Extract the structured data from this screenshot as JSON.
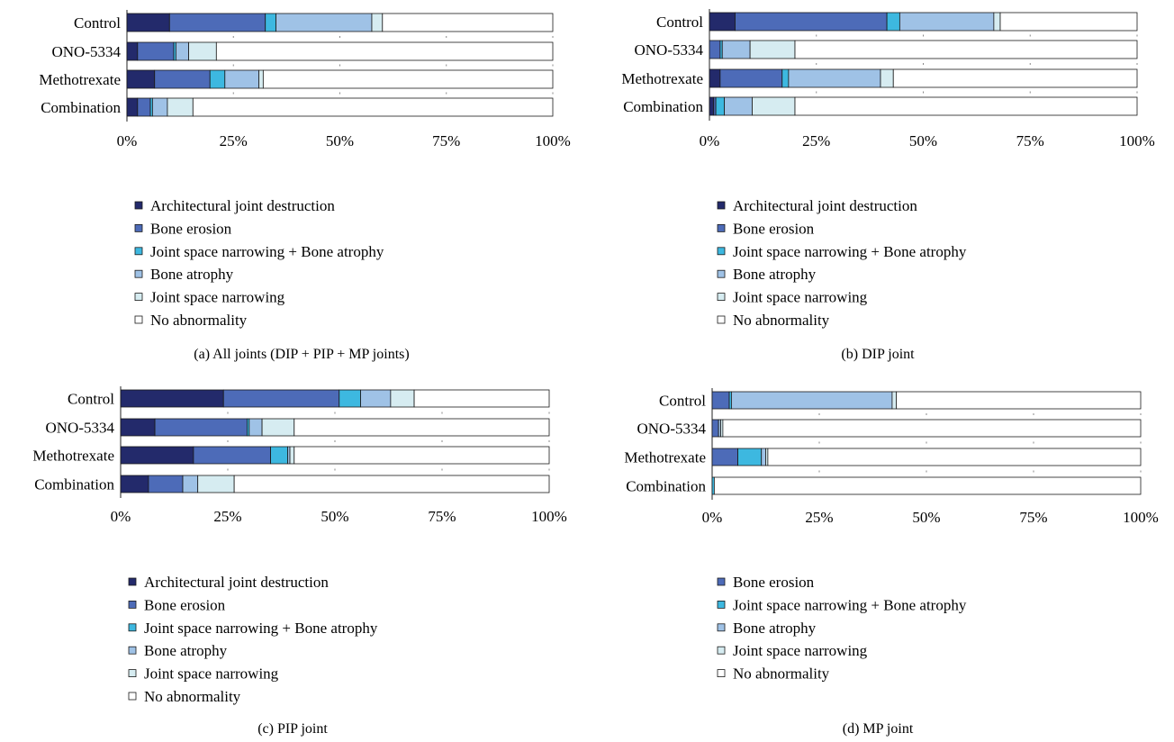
{
  "legend": [
    {
      "key": "arch",
      "label": "Architectural joint destruction",
      "color": "#232a6b"
    },
    {
      "key": "erosion",
      "label": "Bone erosion",
      "color": "#4d6bb8"
    },
    {
      "key": "jsn_atrophy",
      "label": "Joint space narrowing + Bone atrophy",
      "color": "#3db8e0"
    },
    {
      "key": "atrophy",
      "label": "Bone atrophy",
      "color": "#9fc2e6"
    },
    {
      "key": "jsn",
      "label": "Joint space narrowing",
      "color": "#d6ecf1"
    },
    {
      "key": "none",
      "label": "No abnormality",
      "color": "#ffffff"
    }
  ],
  "chart_data": [
    {
      "type": "bar",
      "orientation": "horizontal",
      "stacked": true,
      "caption": "(a)  All joints (DIP + PIP + MP joints)",
      "categories": [
        "Control",
        "ONO-5334",
        "Methotrexate",
        "Combination"
      ],
      "xlim": [
        0,
        100
      ],
      "x_ticks": [
        "0%",
        "25%",
        "50%",
        "75%",
        "100%"
      ],
      "series": [
        {
          "key": "arch",
          "values": [
            10,
            2.5,
            6.5,
            2.5
          ]
        },
        {
          "key": "erosion",
          "values": [
            22.5,
            8.5,
            13,
            3
          ]
        },
        {
          "key": "jsn_atrophy",
          "values": [
            2.5,
            0.5,
            3.5,
            0.5
          ]
        },
        {
          "key": "atrophy",
          "values": [
            22.5,
            3,
            8,
            3.5
          ]
        },
        {
          "key": "jsn",
          "values": [
            2.5,
            6.5,
            1,
            6
          ]
        },
        {
          "key": "none",
          "values": [
            40,
            79,
            68,
            84.5
          ]
        }
      ],
      "legend_keys": [
        "arch",
        "erosion",
        "jsn_atrophy",
        "atrophy",
        "jsn",
        "none"
      ]
    },
    {
      "type": "bar",
      "orientation": "horizontal",
      "stacked": true,
      "caption": "(b)  DIP joint",
      "categories": [
        "Control",
        "ONO-5334",
        "Methotrexate",
        "Combination"
      ],
      "xlim": [
        0,
        100
      ],
      "x_ticks": [
        "0%",
        "25%",
        "50%",
        "75%",
        "100%"
      ],
      "series": [
        {
          "key": "arch",
          "values": [
            6,
            0,
            2.5,
            1
          ]
        },
        {
          "key": "erosion",
          "values": [
            35.5,
            2.5,
            14.5,
            0.5
          ]
        },
        {
          "key": "jsn_atrophy",
          "values": [
            3,
            0.5,
            1.5,
            2
          ]
        },
        {
          "key": "atrophy",
          "values": [
            22,
            6.5,
            21.5,
            6.5
          ]
        },
        {
          "key": "jsn",
          "values": [
            1.5,
            10.5,
            3,
            10
          ]
        },
        {
          "key": "none",
          "values": [
            32,
            80,
            57,
            80
          ]
        }
      ],
      "legend_keys": [
        "arch",
        "erosion",
        "jsn_atrophy",
        "atrophy",
        "jsn",
        "none"
      ]
    },
    {
      "type": "bar",
      "orientation": "horizontal",
      "stacked": true,
      "caption": "(c)  PIP joint",
      "categories": [
        "Control",
        "ONO-5334",
        "Methotrexate",
        "Combination"
      ],
      "xlim": [
        0,
        100
      ],
      "x_ticks": [
        "0%",
        "25%",
        "50%",
        "75%",
        "100%"
      ],
      "series": [
        {
          "key": "arch",
          "values": [
            24,
            8,
            17,
            6.5
          ]
        },
        {
          "key": "erosion",
          "values": [
            27,
            21.5,
            18,
            8
          ]
        },
        {
          "key": "jsn_atrophy",
          "values": [
            5,
            0.5,
            4,
            0
          ]
        },
        {
          "key": "atrophy",
          "values": [
            7,
            3,
            0.5,
            3.5
          ]
        },
        {
          "key": "jsn",
          "values": [
            5.5,
            7.5,
            1,
            8.5
          ]
        },
        {
          "key": "none",
          "values": [
            31.5,
            59.5,
            59.5,
            73.5
          ]
        }
      ],
      "legend_keys": [
        "arch",
        "erosion",
        "jsn_atrophy",
        "atrophy",
        "jsn",
        "none"
      ]
    },
    {
      "type": "bar",
      "orientation": "horizontal",
      "stacked": true,
      "caption": "(d)  MP joint",
      "categories": [
        "Control",
        "ONO-5334",
        "Methotrexate",
        "Combination"
      ],
      "xlim": [
        0,
        100
      ],
      "x_ticks": [
        "0%",
        "25%",
        "50%",
        "75%",
        "100%"
      ],
      "series": [
        {
          "key": "arch",
          "values": [
            0,
            0,
            0,
            0
          ]
        },
        {
          "key": "erosion",
          "values": [
            4,
            1.5,
            6,
            0
          ]
        },
        {
          "key": "jsn_atrophy",
          "values": [
            0.5,
            0,
            5.5,
            0.5
          ]
        },
        {
          "key": "atrophy",
          "values": [
            37.5,
            0.5,
            1,
            0
          ]
        },
        {
          "key": "jsn",
          "values": [
            1,
            0.5,
            0.5,
            0
          ]
        },
        {
          "key": "none",
          "values": [
            57,
            97.5,
            87,
            99.5
          ]
        }
      ],
      "legend_keys": [
        "erosion",
        "jsn_atrophy",
        "atrophy",
        "jsn",
        "none"
      ]
    }
  ]
}
